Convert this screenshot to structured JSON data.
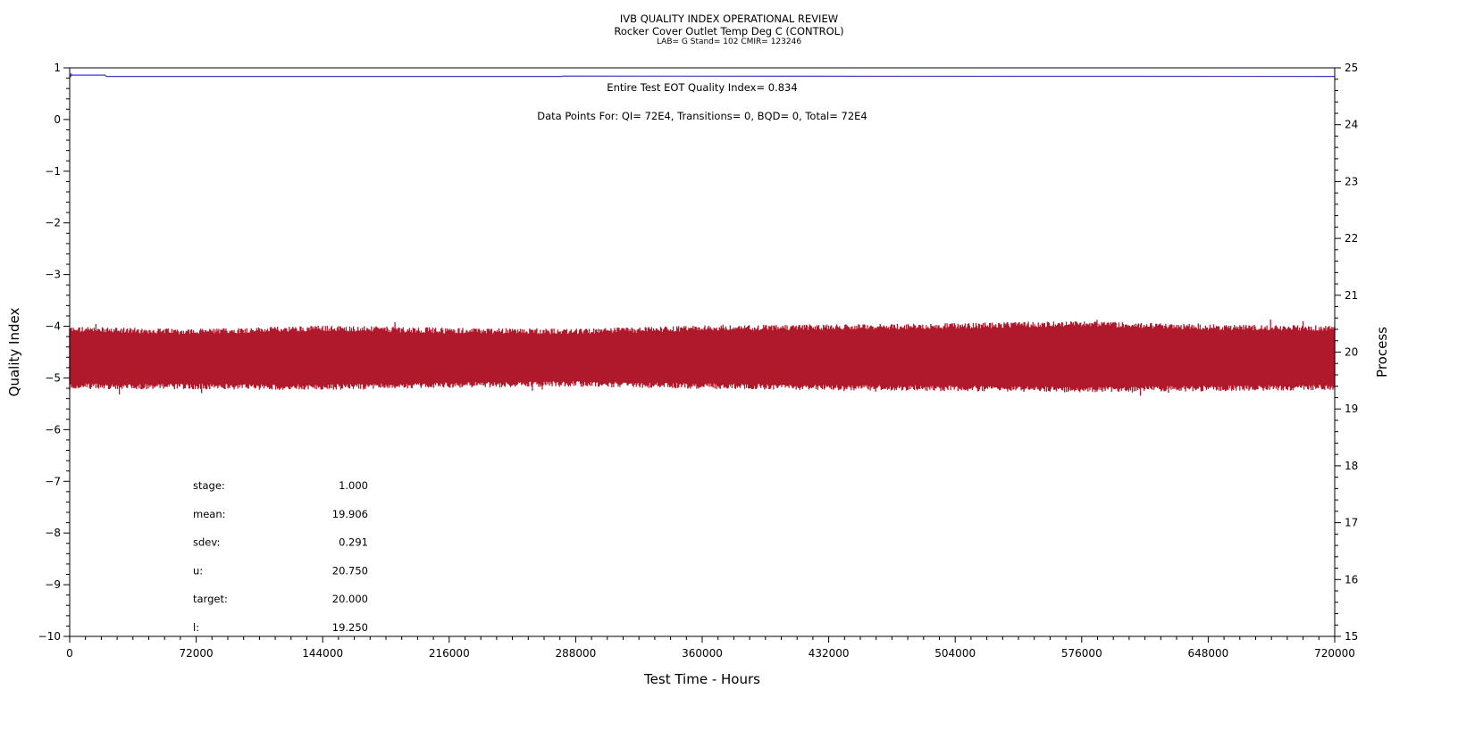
{
  "header": {
    "title": "IVB QUALITY INDEX OPERATIONAL REVIEW",
    "subtitle": "Rocker Cover Outlet Temp Deg C (CONTROL)",
    "lab_line": "LAB= G Stand= 102 CMIR= 123246"
  },
  "annotations": {
    "eot_quality": "Entire Test EOT Quality Index=   0.834",
    "data_points": "Data Points For: QI=  72E4, Transitions=     0, BQD=     0, Total=  72E4"
  },
  "stats": [
    {
      "label": "stage:",
      "value": "1.000"
    },
    {
      "label": "mean:",
      "value": "19.906"
    },
    {
      "label": "sdev:",
      "value": "0.291"
    },
    {
      "label": "u:",
      "value": "20.750"
    },
    {
      "label": "target:",
      "value": "20.000"
    },
    {
      "label": "l:",
      "value": "19.250"
    }
  ],
  "colors": {
    "quality_index_line": "#3b3bc4",
    "process_band": "#b0182b"
  },
  "chart_data": {
    "type": "line",
    "xlabel": "Test Time - Hours",
    "ylabel_left": "Quality Index",
    "ylabel_right": "Process",
    "xlim": [
      0,
      720000
    ],
    "ylim_left": [
      -10,
      1
    ],
    "ylim_right": [
      15,
      25
    ],
    "x_ticks": [
      0,
      72000,
      144000,
      216000,
      288000,
      360000,
      432000,
      504000,
      576000,
      648000,
      720000
    ],
    "y_left_ticks": [
      1,
      0,
      -1,
      -2,
      -3,
      -4,
      -5,
      -6,
      -7,
      -8,
      -9,
      -10
    ],
    "y_right_ticks": [
      25,
      24,
      23,
      22,
      21,
      20,
      19,
      18,
      17,
      16,
      15
    ],
    "series": [
      {
        "axis": "left",
        "x": [
          0,
          500,
          900,
          1200,
          20000,
          21000,
          280000,
          281000,
          720000
        ],
        "y": [
          0.88,
          0.82,
          0.88,
          0.86,
          0.86,
          0.834,
          0.834,
          0.84,
          0.834
        ]
      },
      {
        "axis": "right",
        "kind": "noise-band",
        "x": [
          0,
          72000,
          144000,
          216000,
          288000,
          360000,
          432000,
          504000,
          576000,
          648000,
          720000
        ],
        "upper": [
          20.38,
          20.34,
          20.4,
          20.36,
          20.34,
          20.4,
          20.42,
          20.44,
          20.48,
          20.42,
          20.4
        ],
        "lower": [
          19.42,
          19.41,
          19.4,
          19.44,
          19.46,
          19.42,
          19.4,
          19.38,
          19.36,
          19.38,
          19.4
        ],
        "max": 20.6,
        "min": 19.2
      }
    ]
  }
}
